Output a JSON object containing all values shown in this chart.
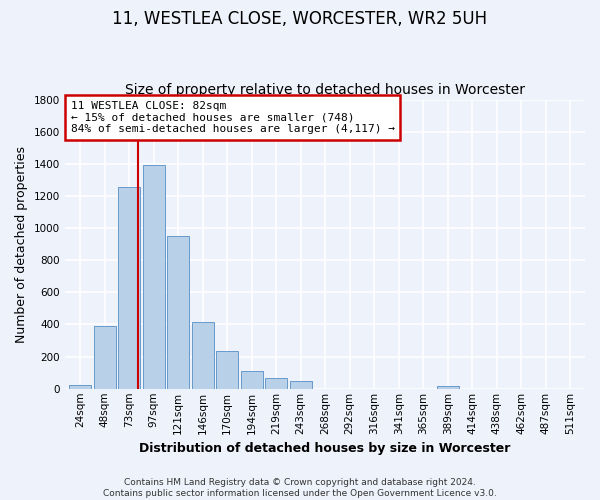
{
  "title": "11, WESTLEA CLOSE, WORCESTER, WR2 5UH",
  "subtitle": "Size of property relative to detached houses in Worcester",
  "xlabel": "Distribution of detached houses by size in Worcester",
  "ylabel": "Number of detached properties",
  "bin_labels": [
    "24sqm",
    "48sqm",
    "73sqm",
    "97sqm",
    "121sqm",
    "146sqm",
    "170sqm",
    "194sqm",
    "219sqm",
    "243sqm",
    "268sqm",
    "292sqm",
    "316sqm",
    "341sqm",
    "365sqm",
    "389sqm",
    "414sqm",
    "438sqm",
    "462sqm",
    "487sqm",
    "511sqm"
  ],
  "bar_values": [
    25,
    390,
    1255,
    1395,
    950,
    415,
    235,
    110,
    70,
    50,
    0,
    0,
    0,
    0,
    0,
    15,
    0,
    0,
    0,
    0,
    0
  ],
  "bar_color": "#b8d0e8",
  "bar_edgecolor": "#6699cc",
  "property_line_color": "#cc0000",
  "annotation_text": "11 WESTLEA CLOSE: 82sqm\n← 15% of detached houses are smaller (748)\n84% of semi-detached houses are larger (4,117) →",
  "annotation_box_color": "#cc0000",
  "ylim": [
    0,
    1800
  ],
  "yticks": [
    0,
    200,
    400,
    600,
    800,
    1000,
    1200,
    1400,
    1600,
    1800
  ],
  "footer_text": "Contains HM Land Registry data © Crown copyright and database right 2024.\nContains public sector information licensed under the Open Government Licence v3.0.",
  "background_color": "#eef2fa",
  "plot_bg_color": "#eef2fa",
  "grid_color": "#ffffff",
  "title_fontsize": 12,
  "subtitle_fontsize": 10,
  "axis_label_fontsize": 9,
  "tick_fontsize": 7.5,
  "footer_fontsize": 6.5,
  "annotation_fontsize": 8
}
